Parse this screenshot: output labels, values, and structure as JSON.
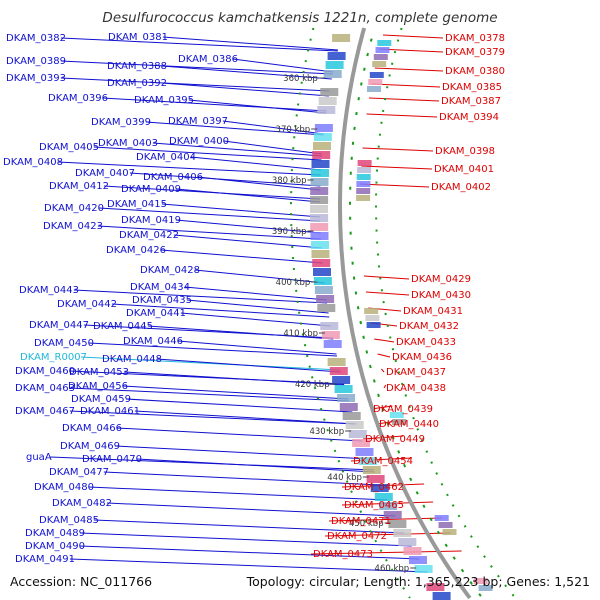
{
  "title": "Desulfurococcus kamchatkensis 1221n, complete genome",
  "accession": "Accession: NC_011766",
  "topology": "Topology: circular; Length: 1,365,223 bp; Genes: 1,521",
  "colors": {
    "forward_label": "#1010d0",
    "reverse_label": "#dd0000",
    "rna_label": "#20b8d8",
    "forward_arrow": "#1515dd",
    "reverse_arrow": "#ee1111",
    "backbone": "#999999",
    "gc_ring": "#1a9a1a"
  },
  "ticks": [
    "360 kbp",
    "370 kbp",
    "380 kbp",
    "390 kbp",
    "400 kbp",
    "410 kbp",
    "420 kbp",
    "430 kbp",
    "440 kbp",
    "450 kbp",
    "460 kbp"
  ],
  "left_labels": [
    {
      "text": "DKAM_0382",
      "kind": "cds"
    },
    {
      "text": "DKAM_0381",
      "kind": "cds"
    },
    {
      "text": "DKAM_0389",
      "kind": "cds"
    },
    {
      "text": "DKAM_0388",
      "kind": "cds"
    },
    {
      "text": "DKAM_0386",
      "kind": "cds"
    },
    {
      "text": "DKAM_0393",
      "kind": "cds"
    },
    {
      "text": "DKAM_0392",
      "kind": "cds"
    },
    {
      "text": "DKAM_0396",
      "kind": "cds"
    },
    {
      "text": "DKAM_0395",
      "kind": "cds"
    },
    {
      "text": "DKAM_0399",
      "kind": "cds"
    },
    {
      "text": "DKAM_0397",
      "kind": "cds"
    },
    {
      "text": "DKAM_0400",
      "kind": "cds"
    },
    {
      "text": "DKAM_0403",
      "kind": "cds"
    },
    {
      "text": "DKAM_0405",
      "kind": "cds"
    },
    {
      "text": "DKAM_0404",
      "kind": "cds"
    },
    {
      "text": "DKAM_0408",
      "kind": "cds"
    },
    {
      "text": "DKAM_0407",
      "kind": "cds"
    },
    {
      "text": "DKAM_0406",
      "kind": "cds"
    },
    {
      "text": "DKAM_0412",
      "kind": "cds"
    },
    {
      "text": "DKAM_0409",
      "kind": "cds"
    },
    {
      "text": "DKAM_0415",
      "kind": "cds"
    },
    {
      "text": "DKAM_0420",
      "kind": "cds"
    },
    {
      "text": "DKAM_0419",
      "kind": "cds"
    },
    {
      "text": "DKAM_0423",
      "kind": "cds"
    },
    {
      "text": "DKAM_0422",
      "kind": "cds"
    },
    {
      "text": "DKAM_0426",
      "kind": "cds"
    },
    {
      "text": "DKAM_0428",
      "kind": "cds"
    },
    {
      "text": "DKAM_0434",
      "kind": "cds"
    },
    {
      "text": "DKAM_0443",
      "kind": "cds"
    },
    {
      "text": "DKAM_0435",
      "kind": "cds"
    },
    {
      "text": "DKAM_0442",
      "kind": "cds"
    },
    {
      "text": "DKAM_0441",
      "kind": "cds"
    },
    {
      "text": "DKAM_0447",
      "kind": "cds"
    },
    {
      "text": "DKAM_0445",
      "kind": "cds"
    },
    {
      "text": "DKAM_0446",
      "kind": "cds"
    },
    {
      "text": "DKAM_0450",
      "kind": "cds"
    },
    {
      "text": "DKAM_R0007",
      "kind": "rna"
    },
    {
      "text": "DKAM_0448",
      "kind": "cds"
    },
    {
      "text": "DKAM_0460",
      "kind": "cds"
    },
    {
      "text": "DKAM_0453",
      "kind": "cds"
    },
    {
      "text": "DKAM_0463",
      "kind": "cds"
    },
    {
      "text": "DKAM_0456",
      "kind": "cds"
    },
    {
      "text": "DKAM_0459",
      "kind": "cds"
    },
    {
      "text": "DKAM_0467",
      "kind": "cds"
    },
    {
      "text": "DKAM_0461",
      "kind": "cds"
    },
    {
      "text": "DKAM_0466",
      "kind": "cds"
    },
    {
      "text": "DKAM_0469",
      "kind": "cds"
    },
    {
      "text": "DKAM_0470",
      "kind": "cds"
    },
    {
      "text": "guaA",
      "kind": "cds"
    },
    {
      "text": "DKAM_0477",
      "kind": "cds"
    },
    {
      "text": "DKAM_0480",
      "kind": "cds"
    },
    {
      "text": "DKAM_0482",
      "kind": "cds"
    },
    {
      "text": "DKAM_0485",
      "kind": "cds"
    },
    {
      "text": "DKAM_0489",
      "kind": "cds"
    },
    {
      "text": "DKAM_0490",
      "kind": "cds"
    },
    {
      "text": "DKAM_0491",
      "kind": "cds"
    }
  ],
  "right_labels": [
    "DKAM_0378",
    "DKAM_0379",
    "DKAM_0380",
    "DKAM_0385",
    "DKAM_0387",
    "DKAM_0394",
    "DKAM_0398",
    "DKAM_0401",
    "DKAM_0402",
    "DKAM_0429",
    "DKAM_0430",
    "DKAM_0431",
    "DKAM_0432",
    "DKAM_0433",
    "DKAM_0436",
    "DKAM_0437",
    "DKAM_0438",
    "DKAM_0439",
    "DKAM_0440",
    "DKAM_0449",
    "DKAM_0454",
    "DKAM_0462",
    "DKAM_0465",
    "DKAM_0471",
    "DKAM_0472",
    "DKAM_0473"
  ]
}
